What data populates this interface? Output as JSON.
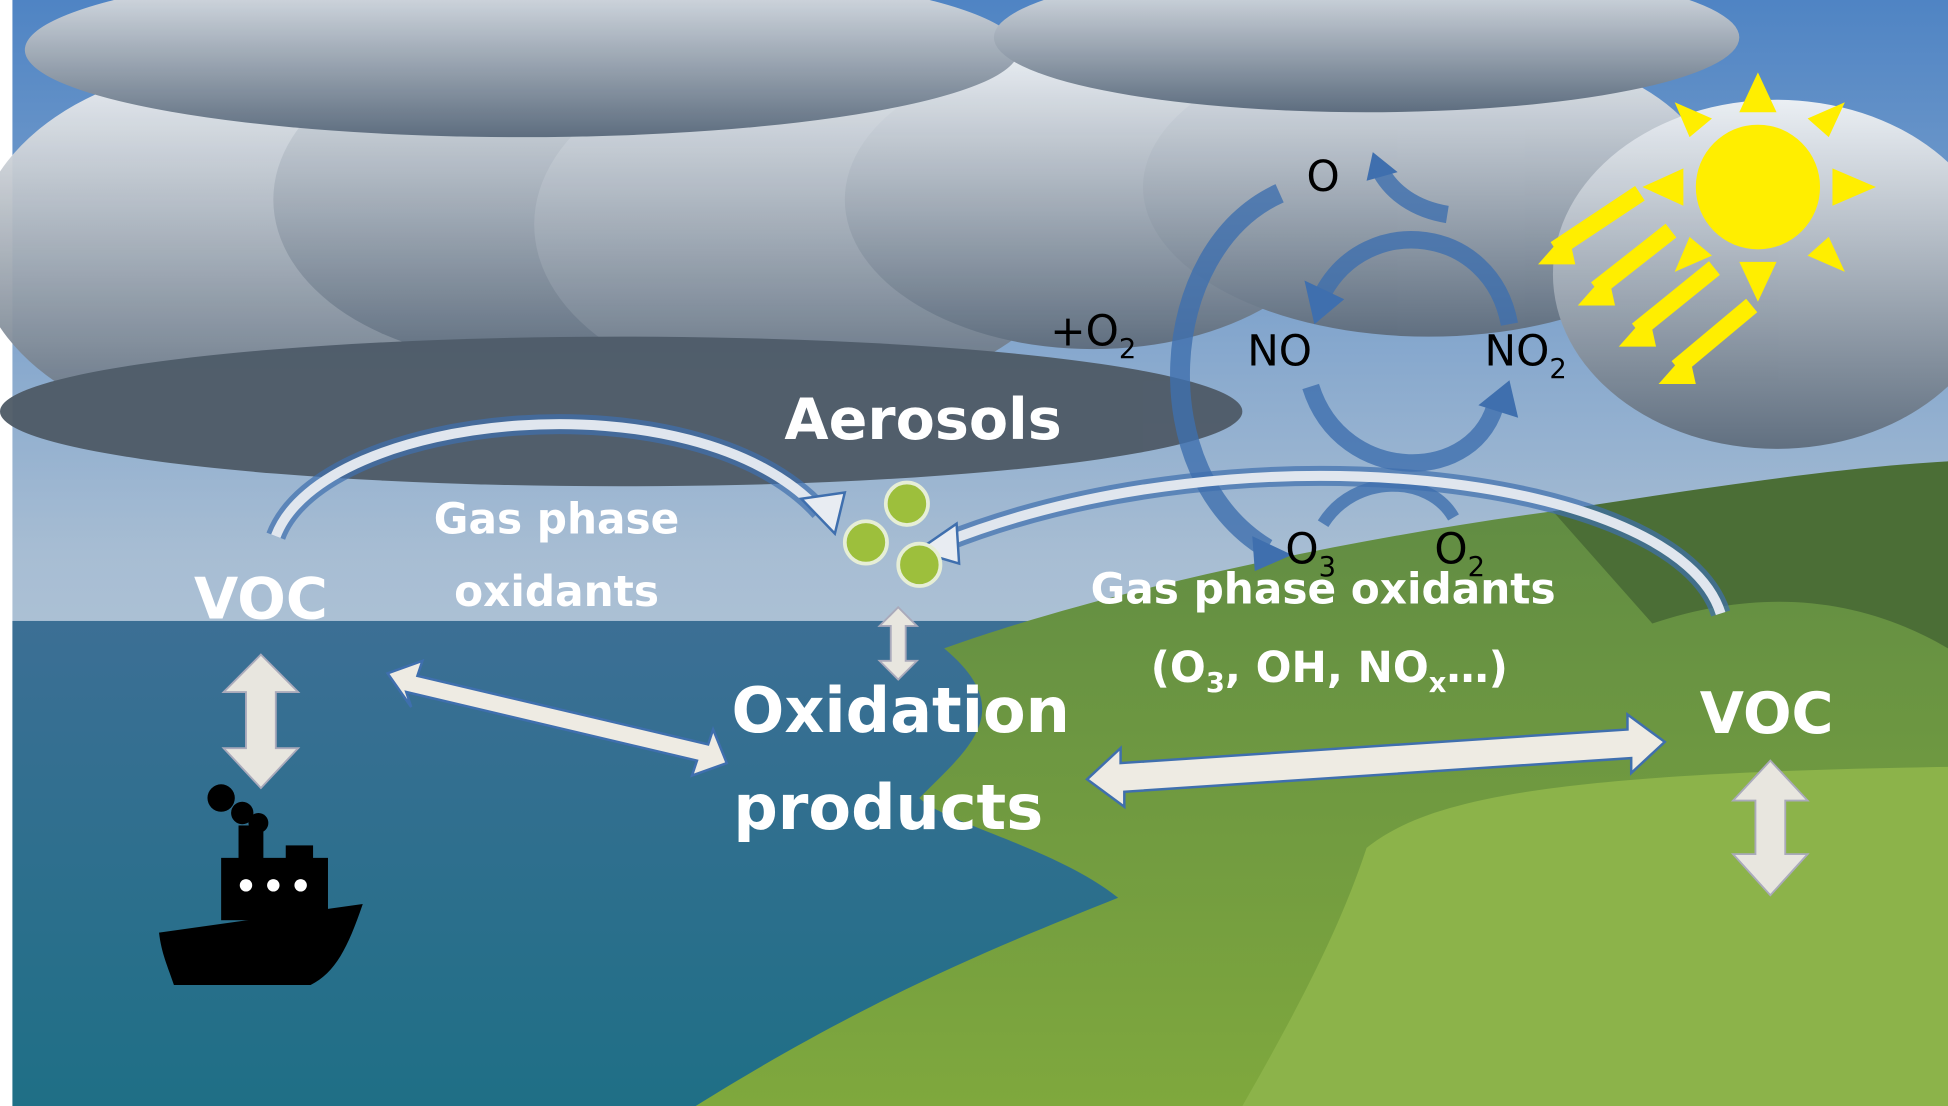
{
  "labels": {
    "voc_left": "VOC",
    "gas_left": [
      "Gas phase",
      "oxidants"
    ],
    "aerosols": "Aerosols",
    "oxidation_products": [
      "Oxidation",
      "products"
    ],
    "gas_right": "Gas phase oxidants",
    "gas_right_species": [
      "(O",
      "3",
      ", OH, NO",
      "x",
      "…)"
    ],
    "voc_right": "VOC"
  },
  "cycle": {
    "o": "O",
    "plus_o2": [
      "+O",
      "2"
    ],
    "no": "NO",
    "no2": [
      "NO",
      "2"
    ],
    "o3": [
      "O",
      "3"
    ],
    "o2": [
      "O",
      "2"
    ]
  }
}
